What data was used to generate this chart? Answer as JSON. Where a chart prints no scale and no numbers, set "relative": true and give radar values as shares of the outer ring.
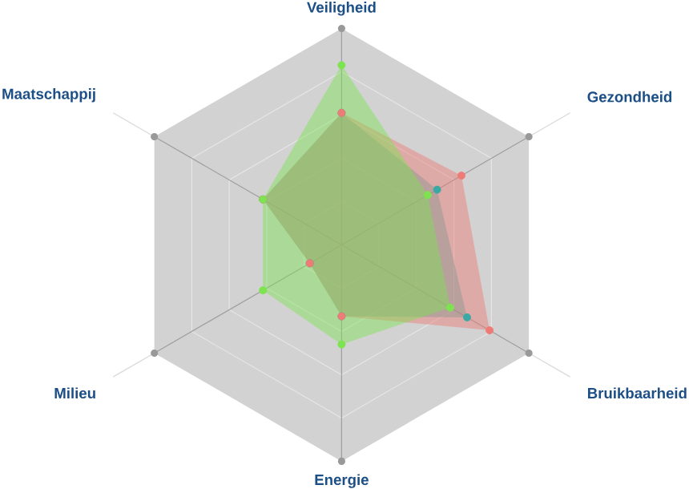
{
  "chart_data": {
    "type": "radar",
    "relative": true,
    "grid": true,
    "marker": "circle",
    "categories": [
      "Veiligheid",
      "Gezondheid",
      "Bruikbaarheid",
      "Energie",
      "Milieu",
      "Maatschappij"
    ],
    "series": [
      {
        "color": "#3aa9a4",
        "values": [
          0.61,
          0.51,
          0.67,
          0.33,
          0.17,
          0.42
        ]
      },
      {
        "color": "#ee7b76",
        "values": [
          0.61,
          0.64,
          0.79,
          0.33,
          0.17,
          0.42
        ]
      },
      {
        "color": "#7de34f",
        "values": [
          0.83,
          0.46,
          0.58,
          0.46,
          0.42,
          0.42
        ]
      }
    ]
  }
}
